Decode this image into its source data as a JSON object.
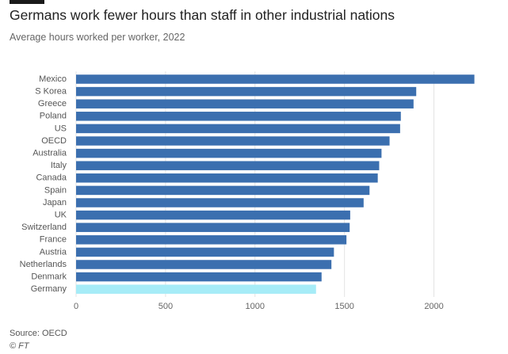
{
  "header": {
    "title": "Germans work fewer hours than staff in other industrial nations",
    "subtitle": "Average hours worked per worker, 2022"
  },
  "footer": {
    "source": "Source: OECD",
    "credit": "© FT"
  },
  "colors": {
    "bar": "#3b6faf",
    "highlight": "#a6ecf7",
    "grid": "#e3e3e3"
  },
  "chart_data": {
    "type": "bar",
    "orientation": "horizontal",
    "title": "Germans work fewer hours than staff in other industrial nations",
    "subtitle": "Average hours worked per worker, 2022",
    "categories": [
      "Mexico",
      "S Korea",
      "Greece",
      "Poland",
      "US",
      "OECD",
      "Australia",
      "Italy",
      "Canada",
      "Spain",
      "Japan",
      "UK",
      "Switzerland",
      "France",
      "Austria",
      "Netherlands",
      "Denmark",
      "Germany"
    ],
    "values": [
      2226,
      1901,
      1886,
      1815,
      1811,
      1752,
      1707,
      1694,
      1686,
      1640,
      1607,
      1532,
      1529,
      1511,
      1441,
      1427,
      1372,
      1341
    ],
    "highlight": "Germany",
    "xlim": [
      0,
      2250
    ],
    "xticks": [
      0,
      500,
      1000,
      1500,
      2000
    ],
    "grid": true,
    "legend": "none"
  }
}
